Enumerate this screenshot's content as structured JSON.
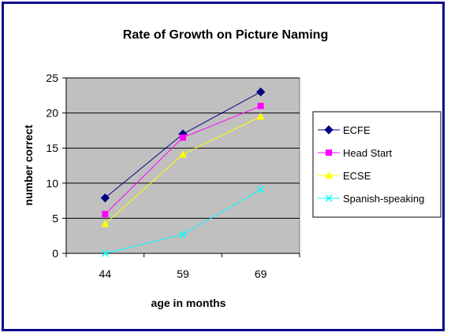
{
  "chart_data": {
    "type": "line",
    "title": "Rate of Growth on Picture Naming",
    "xlabel": "age in months",
    "ylabel": "number correct",
    "categories": [
      "44",
      "59",
      "69"
    ],
    "ylim": [
      0,
      25
    ],
    "yticks": [
      0,
      5,
      10,
      15,
      20,
      25
    ],
    "grid": true,
    "plot_background": "#c0c0c0",
    "legend_position": "right",
    "series": [
      {
        "name": "ECFE",
        "values": [
          7.9,
          17.0,
          23.0
        ],
        "color": "#000080",
        "marker": "diamond"
      },
      {
        "name": "Head Start",
        "values": [
          5.6,
          16.5,
          21.0
        ],
        "color": "#ff00ff",
        "marker": "square"
      },
      {
        "name": "ECSE",
        "values": [
          4.2,
          14.1,
          19.5
        ],
        "color": "#ffff00",
        "marker": "triangle"
      },
      {
        "name": "Spanish-speaking",
        "values": [
          0.0,
          2.7,
          9.1
        ],
        "color": "#00ffff",
        "marker": "x"
      }
    ]
  }
}
